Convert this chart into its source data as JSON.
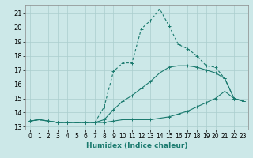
{
  "xlabel": "Humidex (Indice chaleur)",
  "background_color": "#cce8e8",
  "grid_color": "#aacece",
  "line_color": "#1a7a6e",
  "xlim": [
    -0.5,
    23.5
  ],
  "ylim": [
    12.8,
    21.6
  ],
  "xticks": [
    0,
    1,
    2,
    3,
    4,
    5,
    6,
    7,
    8,
    9,
    10,
    11,
    12,
    13,
    14,
    15,
    16,
    17,
    18,
    19,
    20,
    21,
    22,
    23
  ],
  "yticks": [
    13,
    14,
    15,
    16,
    17,
    18,
    19,
    20,
    21
  ],
  "line1_x": [
    0,
    1,
    2,
    3,
    4,
    5,
    6,
    7,
    8,
    9,
    10,
    11,
    12,
    13,
    14,
    15,
    16,
    17,
    18,
    19,
    20,
    21,
    22,
    23
  ],
  "line1_y": [
    13.4,
    13.5,
    13.4,
    13.3,
    13.3,
    13.3,
    13.3,
    13.3,
    13.3,
    13.4,
    13.5,
    13.5,
    13.5,
    13.5,
    13.6,
    13.7,
    13.9,
    14.1,
    14.4,
    14.7,
    15.0,
    15.5,
    15.0,
    14.8
  ],
  "line2_x": [
    0,
    1,
    2,
    3,
    4,
    5,
    6,
    7,
    8,
    9,
    10,
    11,
    12,
    13,
    14,
    15,
    16,
    17,
    18,
    19,
    20,
    21,
    22,
    23
  ],
  "line2_y": [
    13.4,
    13.5,
    13.4,
    13.3,
    13.3,
    13.3,
    13.3,
    13.3,
    14.4,
    16.9,
    17.5,
    17.5,
    19.9,
    20.5,
    21.3,
    20.1,
    18.8,
    18.5,
    18.0,
    17.3,
    17.2,
    16.4,
    15.0,
    14.8
  ],
  "line3_x": [
    0,
    1,
    2,
    3,
    4,
    5,
    6,
    7,
    8,
    9,
    10,
    11,
    12,
    13,
    14,
    15,
    16,
    17,
    18,
    19,
    20,
    21,
    22,
    23
  ],
  "line3_y": [
    13.4,
    13.5,
    13.4,
    13.3,
    13.3,
    13.3,
    13.3,
    13.3,
    13.5,
    14.2,
    14.8,
    15.2,
    15.7,
    16.2,
    16.8,
    17.2,
    17.3,
    17.3,
    17.2,
    17.0,
    16.8,
    16.4,
    15.0,
    14.8
  ]
}
